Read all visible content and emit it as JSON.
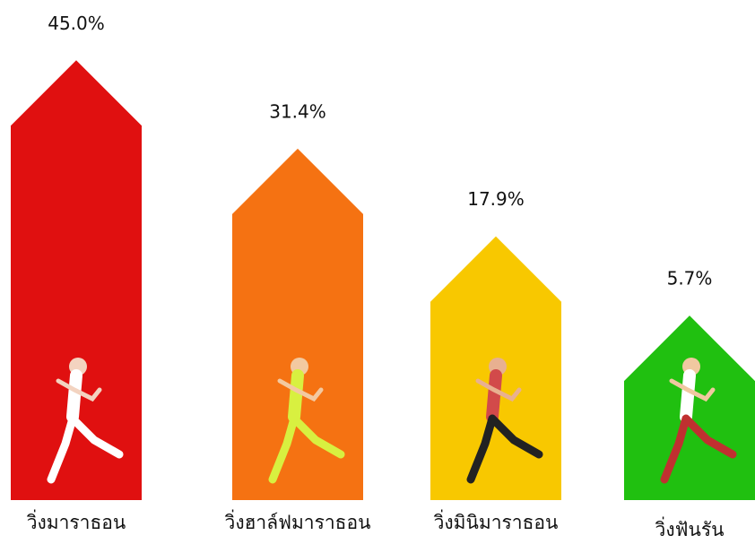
{
  "chart_data": {
    "type": "arrow-bar",
    "categories": [
      "วิ่งมาราธอน",
      "วิ่งฮาล์ฟมาราธอน",
      "วิ่งมินิมาราธอน",
      "วิ่งฟันรัน"
    ],
    "values": [
      45.0,
      31.4,
      17.9,
      5.7
    ],
    "value_labels": [
      "45.0%",
      "31.4%",
      "17.9%",
      "5.7%"
    ],
    "colors": [
      "#e01010",
      "#f57212",
      "#f8c800",
      "#20c010"
    ]
  }
}
